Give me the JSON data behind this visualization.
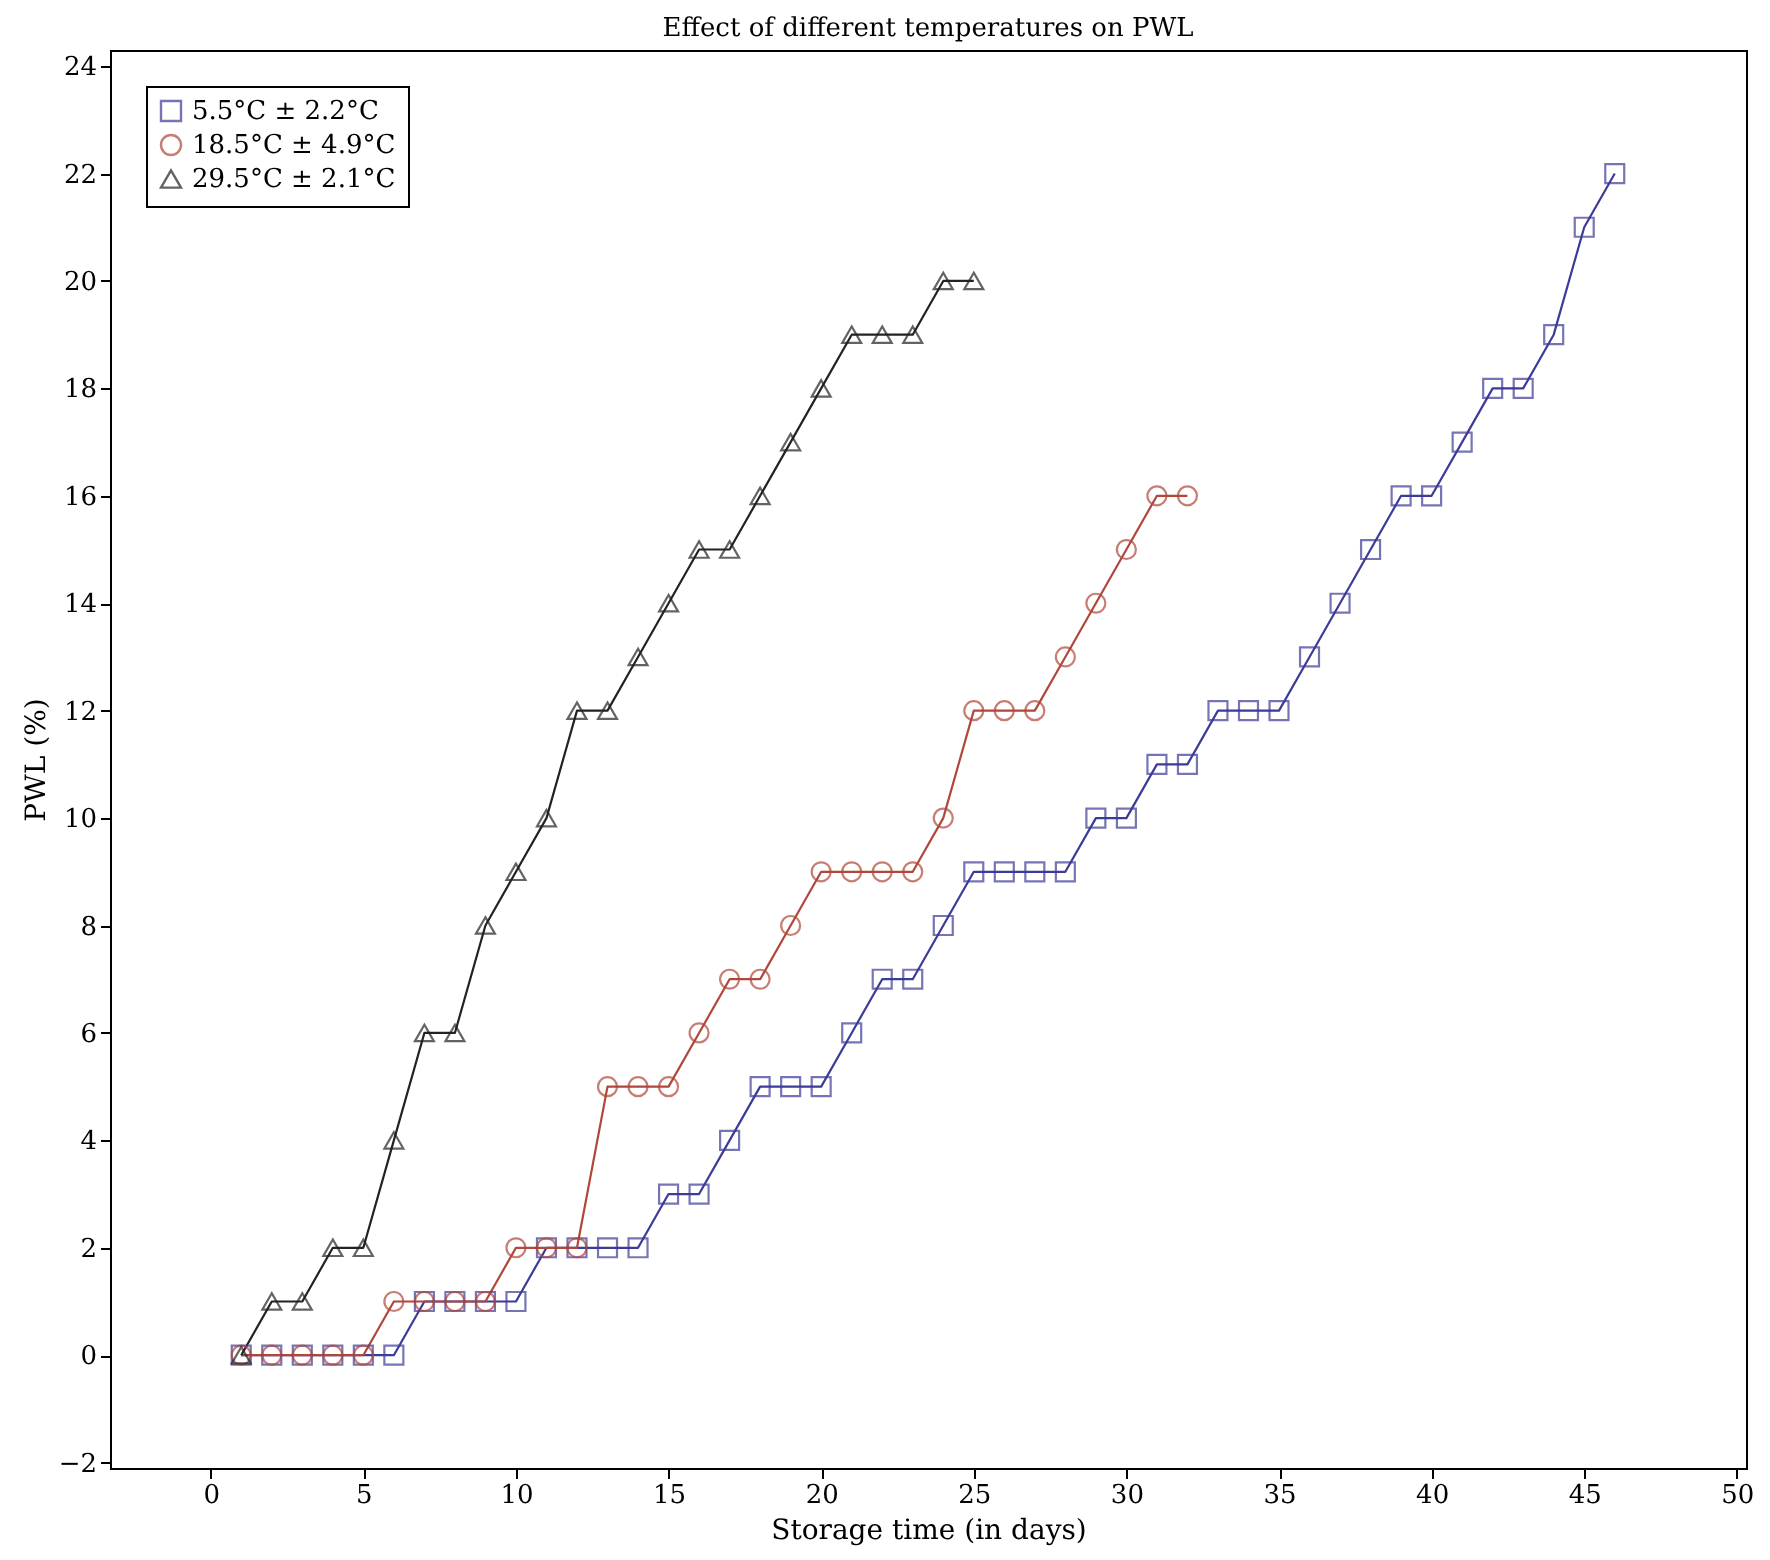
{
  "chart_data": {
    "type": "line",
    "title": "Effect of different temperatures on PWL",
    "xlabel": "Storage time (in days)",
    "ylabel": "PWL (%)",
    "xlim": [
      -3.3,
      50.3
    ],
    "xticks": [
      0,
      5,
      10,
      15,
      20,
      25,
      30,
      35,
      40,
      45,
      50
    ],
    "ylim": [
      -2.1,
      24.3
    ],
    "yticks": [
      -2,
      0,
      2,
      4,
      6,
      8,
      10,
      12,
      14,
      16,
      18,
      20,
      22,
      24
    ],
    "legend": "top left",
    "line_style": "solid",
    "series": [
      {
        "name": "5.5°C ± 2.2°C",
        "color": "#3b3b98",
        "marker": "square",
        "x": [
          1,
          2,
          3,
          4,
          5,
          6,
          7,
          8,
          9,
          10,
          11,
          12,
          13,
          14,
          15,
          16,
          17,
          18,
          19,
          20,
          21,
          22,
          23,
          24,
          25,
          26,
          27,
          28,
          29,
          30,
          31,
          32,
          33,
          34,
          35,
          36,
          37,
          38,
          39,
          40,
          41,
          42,
          43,
          44,
          45,
          46
        ],
        "values": [
          0,
          0,
          0,
          0,
          0,
          0,
          1,
          1,
          1,
          1,
          2,
          2,
          2,
          2,
          3,
          3,
          4,
          5,
          5,
          5,
          6,
          7,
          7,
          8,
          9,
          9,
          9,
          9,
          10,
          10,
          11,
          11,
          12,
          12,
          12,
          13,
          14,
          15,
          16,
          16,
          17,
          18,
          18,
          19,
          21,
          22
        ]
      },
      {
        "name": "18.5°C ± 4.9°C",
        "color": "#b0473a",
        "marker": "circle",
        "x": [
          1,
          2,
          3,
          4,
          5,
          6,
          7,
          8,
          9,
          10,
          11,
          12,
          13,
          14,
          15,
          16,
          17,
          18,
          19,
          20,
          21,
          22,
          23,
          24,
          25,
          26,
          27,
          28,
          29,
          30,
          31,
          32
        ],
        "values": [
          0,
          0,
          0,
          0,
          0,
          1,
          1,
          1,
          1,
          2,
          2,
          2,
          5,
          5,
          5,
          6,
          7,
          7,
          8,
          9,
          9,
          9,
          9,
          10,
          12,
          12,
          12,
          13,
          14,
          15,
          16,
          16
        ]
      },
      {
        "name": "29.5°C ± 2.1°C",
        "color": "#222222",
        "marker": "triangle",
        "x": [
          1,
          2,
          3,
          4,
          5,
          6,
          7,
          8,
          9,
          10,
          11,
          12,
          13,
          14,
          15,
          16,
          17,
          18,
          19,
          20,
          21,
          22,
          23,
          24,
          25
        ],
        "values": [
          0,
          1,
          1,
          2,
          2,
          4,
          6,
          6,
          8,
          9,
          10,
          12,
          12,
          13,
          14,
          15,
          15,
          16,
          17,
          18,
          19,
          19,
          19,
          20,
          20
        ]
      }
    ]
  }
}
